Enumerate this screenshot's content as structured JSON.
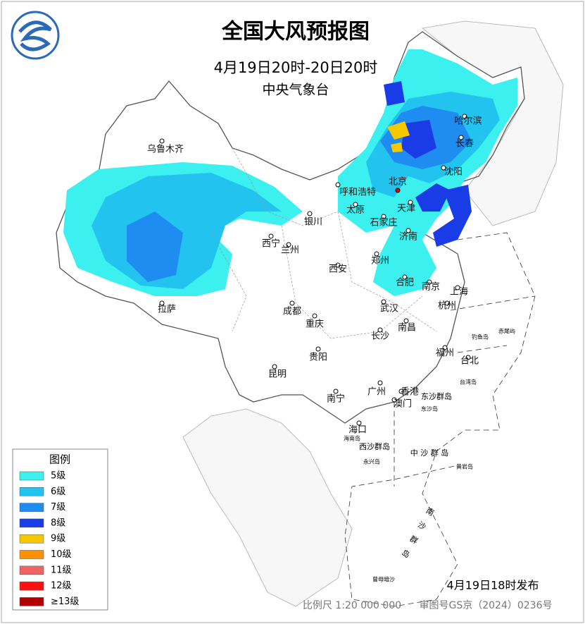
{
  "header": {
    "title": "全国大风预报图",
    "period": "4月19日20时-20日20时",
    "issuer": "中央气象台"
  },
  "cities": [
    "乌鲁木齐",
    "哈尔滨",
    "长春",
    "沈阳",
    "北京",
    "呼和浩特",
    "天津",
    "太原",
    "石家庄",
    "银川",
    "西宁",
    "兰州",
    "济南",
    "郑州",
    "西安",
    "合肥",
    "南京",
    "上海",
    "杭州",
    "拉萨",
    "成都",
    "重庆",
    "武汉",
    "长沙",
    "南昌",
    "贵阳",
    "福州",
    "台北",
    "昆明",
    "南宁",
    "广州",
    "香港",
    "澳门",
    "海口"
  ],
  "islands": [
    "钓鱼岛",
    "赤尾屿",
    "台湾岛",
    "东沙群岛",
    "东沙岛",
    "海南岛",
    "西沙群岛",
    "永兴岛",
    "中 沙 群 岛",
    "黄岩岛",
    "南沙群岛",
    "曾母暗沙"
  ],
  "legend": {
    "title": "图例",
    "levels": [
      {
        "label": "5级",
        "color": "#3cf0f0"
      },
      {
        "label": "6级",
        "color": "#22c4ef"
      },
      {
        "label": "7级",
        "color": "#1e8cf0"
      },
      {
        "label": "8级",
        "color": "#1a3ce6"
      },
      {
        "label": "9级",
        "color": "#f5c800"
      },
      {
        "label": "10级",
        "color": "#ff9000"
      },
      {
        "label": "11级",
        "color": "#f06464"
      },
      {
        "label": "12级",
        "color": "#ff1010"
      },
      {
        "label": "≥13级",
        "color": "#b00000"
      }
    ]
  },
  "footer": {
    "issued": "4月19日18时发布",
    "scale": "比例尺 1:20 000 000",
    "approval": "审图号GS京（2024）0236号"
  }
}
